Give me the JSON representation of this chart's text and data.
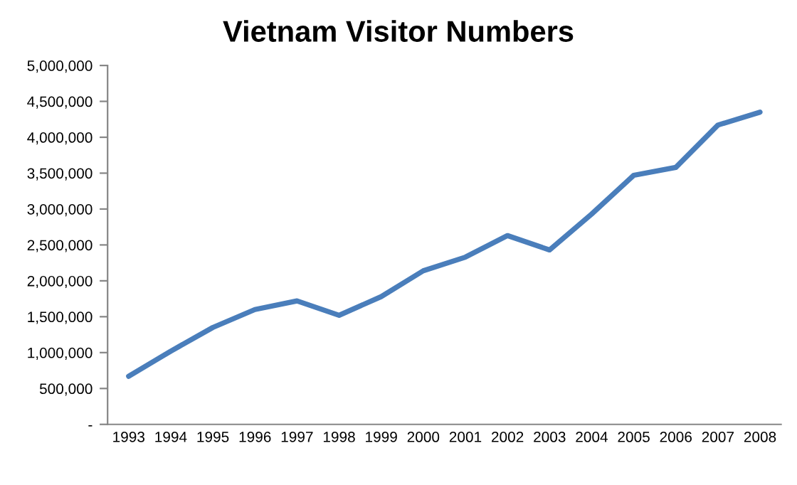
{
  "chart_data": {
    "type": "line",
    "title": "Vietnam Visitor Numbers",
    "categories": [
      "1993",
      "1994",
      "1995",
      "1996",
      "1997",
      "1998",
      "1999",
      "2000",
      "2001",
      "2002",
      "2003",
      "2004",
      "2005",
      "2006",
      "2007",
      "2008"
    ],
    "series": [
      {
        "color": "#4a7ebb",
        "values": [
          670000,
          1020000,
          1350000,
          1600000,
          1720000,
          1520000,
          1780000,
          2140000,
          2330000,
          2630000,
          2430000,
          2930000,
          3470000,
          3580000,
          4170000,
          4350000
        ]
      }
    ],
    "ylim": [
      0,
      5000000
    ],
    "yticks": [
      {
        "value": 0,
        "label": "-"
      },
      {
        "value": 500000,
        "label": "500,000"
      },
      {
        "value": 1000000,
        "label": "1,000,000"
      },
      {
        "value": 1500000,
        "label": "1,500,000"
      },
      {
        "value": 2000000,
        "label": "2,000,000"
      },
      {
        "value": 2500000,
        "label": "2,500,000"
      },
      {
        "value": 3000000,
        "label": "3,000,000"
      },
      {
        "value": 3500000,
        "label": "3,500,000"
      },
      {
        "value": 4000000,
        "label": "4,000,000"
      },
      {
        "value": 4500000,
        "label": "4,500,000"
      },
      {
        "value": 5000000,
        "label": "5,000,000"
      }
    ],
    "grid": false,
    "marker": "none",
    "line_style": "solid"
  }
}
